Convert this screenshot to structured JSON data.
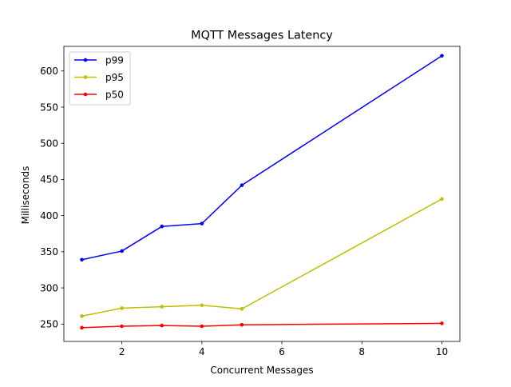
{
  "chart_data": {
    "type": "line",
    "title": "MQTT Messages Latency",
    "xlabel": "Concurrent Messages",
    "ylabel": "Milliseconds",
    "x": [
      1,
      2,
      3,
      4,
      5,
      10
    ],
    "xlim": [
      0.55,
      10.45
    ],
    "ylim": [
      226,
      634
    ],
    "xticks": [
      2,
      4,
      6,
      8,
      10
    ],
    "yticks": [
      250,
      300,
      350,
      400,
      450,
      500,
      550,
      600
    ],
    "grid": false,
    "legend_position": "top-left",
    "series": [
      {
        "name": "p99",
        "color": "#0000ff",
        "values": [
          339,
          351,
          385,
          389,
          442,
          621
        ]
      },
      {
        "name": "p95",
        "color": "#bfbf00",
        "values": [
          261,
          272,
          274,
          276,
          271,
          423
        ]
      },
      {
        "name": "p50",
        "color": "#ff0000",
        "values": [
          245,
          247,
          248,
          247,
          249,
          251
        ]
      }
    ]
  }
}
